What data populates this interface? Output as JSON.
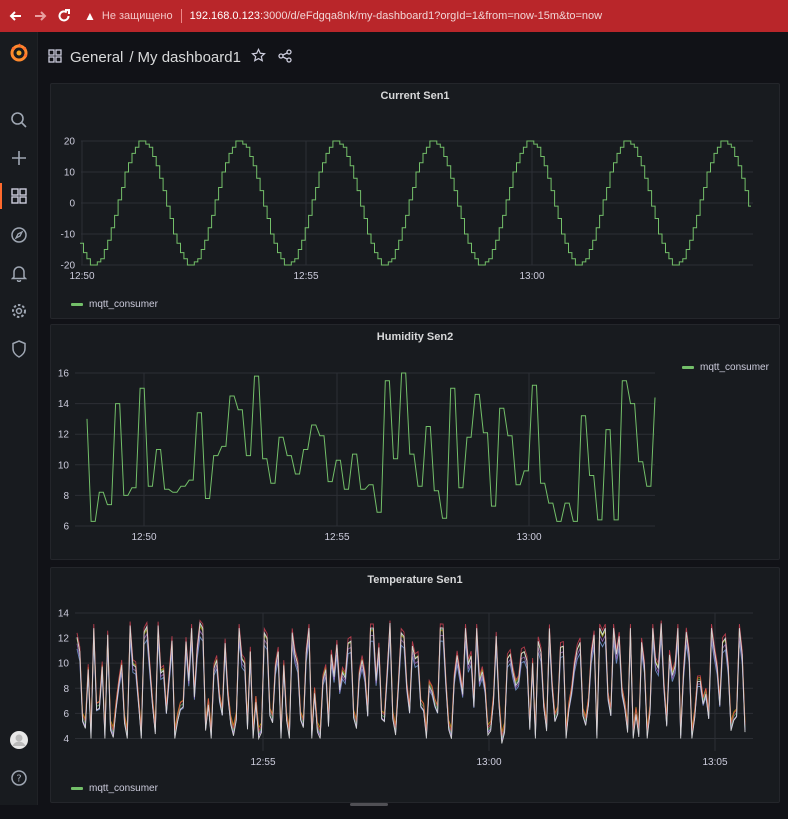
{
  "browser": {
    "insecure_label": "Не защищено",
    "url_host": "192.168.0.123",
    "url_path": ":3000/d/eFdgqa8nk/my-dashboard1?orgId=1&from=now-15m&to=now"
  },
  "header": {
    "breadcrumb_root": "General",
    "breadcrumb_sep": "/",
    "dashboard_title": "My dashboard1"
  },
  "colors": {
    "accent": "#ff6a2d",
    "series_green": "#73bf69",
    "background": "#111217",
    "panel": "#181b1f",
    "browser_bar": "#b9262a"
  },
  "icons": {
    "sidebar": [
      "grafana-logo-icon",
      "search-icon",
      "plus-icon",
      "dashboards-icon",
      "explore-compass-icon",
      "alert-bell-icon",
      "gear-icon",
      "shield-icon",
      "avatar",
      "help-icon"
    ],
    "header": [
      "dashboard-grid-icon",
      "star-icon",
      "share-icon"
    ]
  },
  "panels": [
    {
      "title": "Current Sen1",
      "legend": "mqtt_consumer",
      "chart_data": {
        "type": "line",
        "title": "Current Sen1",
        "x_ticks": [
          "12:50",
          "12:55",
          "13:00"
        ],
        "y_ticks": [
          "20",
          "10",
          "0",
          "-10",
          "-20"
        ],
        "ylim": [
          -20,
          20
        ],
        "series": [
          {
            "name": "mqtt_consumer",
            "shape": "stepped sine wave, period ≈ 2.5 min, amplitude 20, ~7 cycles"
          }
        ],
        "legend_position": "bottom-left",
        "grid": true
      }
    },
    {
      "title": "Humidity Sen2",
      "legend": "mqtt_consumer",
      "chart_data": {
        "type": "line",
        "title": "Humidity Sen2",
        "x_ticks": [
          "12:50",
          "12:55",
          "13:00"
        ],
        "y_ticks": [
          "16",
          "14",
          "12",
          "10",
          "8",
          "6"
        ],
        "ylim": [
          6,
          16
        ],
        "series": [
          {
            "name": "mqtt_consumer",
            "values": [
              13,
              6.3,
              6.3,
              8.2,
              8.2,
              7.4,
              7.4,
              14,
              14,
              8,
              8,
              8.5,
              8.5,
              15,
              15,
              8.6,
              8.6,
              11,
              11,
              8.4,
              8.4,
              8.2,
              8.2,
              8.6,
              8.6,
              9,
              9,
              13.4,
              13.4,
              7.8,
              7.8,
              10.6,
              10.6,
              11.2,
              11.2,
              14.5,
              14.5,
              13.6,
              13.6,
              10.6,
              10.6,
              15.8,
              15.8,
              10.4,
              10.4,
              8.8,
              8.8,
              11.8,
              11.8,
              10.6,
              10.6,
              9.4,
              9.4,
              11,
              11,
              12.6,
              12.6,
              11.9,
              11.9,
              8.9,
              8.9,
              10.3,
              10.3,
              8.4,
              8.4,
              10.7,
              10.7,
              8.4,
              8.4,
              8.7,
              8.7,
              6.9,
              6.9,
              15.5,
              15.5,
              10.4,
              10.4,
              16,
              16,
              10.7,
              10.7,
              8.6,
              8.6,
              12.5,
              12.5,
              8.3,
              8.3,
              6.5,
              6.5,
              15,
              15,
              8.5,
              8.5,
              11.8,
              11.8,
              14.6,
              14.6,
              12.1,
              12.1,
              7.3,
              7.3,
              13.7,
              13.7,
              11.9,
              11.9,
              8.7,
              8.7,
              9.6,
              9.6,
              15.2,
              15.2,
              8.8,
              8.8,
              7.5,
              7.5,
              6.3,
              6.3,
              7.5,
              7.5,
              6.3,
              6.3,
              13.2,
              13.2,
              9.3,
              9.3,
              6.4,
              6.4,
              12.3,
              12.3,
              6.4,
              6.4,
              15.5,
              15.5,
              14,
              14,
              10.2,
              10.2,
              8.6,
              8.6,
              14.4
            ]
          }
        ],
        "legend_position": "top-right",
        "grid": true
      }
    },
    {
      "title": "Temperature Sen1",
      "legend": "mqtt_consumer",
      "chart_data": {
        "type": "line",
        "title": "Temperature Sen1",
        "x_ticks": [
          "12:55",
          "13:00",
          "13:05"
        ],
        "y_ticks": [
          "14",
          "12",
          "10",
          "8",
          "6",
          "4"
        ],
        "ylim": [
          3,
          14
        ],
        "series": [
          {
            "name": "mqtt_consumer",
            "shape": "noisy oscillation between ~4 and ~13, multiple overlapping colored traces"
          }
        ],
        "legend_position": "bottom-left",
        "grid": true
      }
    }
  ]
}
